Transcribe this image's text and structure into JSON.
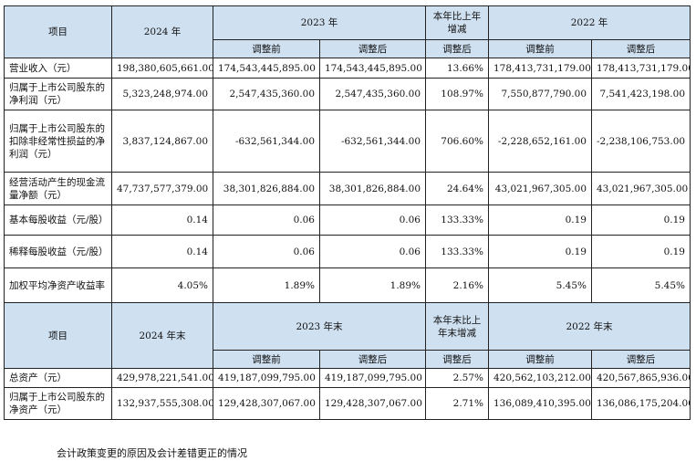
{
  "table1": {
    "header": {
      "item": "项目",
      "y2024": "2024 年",
      "y2023": "2023 年",
      "change": "本年比上年增减",
      "y2022": "2022 年",
      "before": "调整前",
      "after": "调整后",
      "change_after": "调整后"
    },
    "rows": [
      {
        "label": "营业收入（元）",
        "v2024": "198,380,605,661.00",
        "v2023_before": "174,543,445,895.00",
        "v2023_after": "174,543,445,895.00",
        "change": "13.66%",
        "v2022_before": "178,413,731,179.00",
        "v2022_after": "178,413,731,179.00"
      },
      {
        "label": "归属于上市公司股东的净利润（元）",
        "v2024": "5,323,248,974.00",
        "v2023_before": "2,547,435,360.00",
        "v2023_after": "2,547,435,360.00",
        "change": "108.97%",
        "v2022_before": "7,550,877,790.00",
        "v2022_after": "7,541,423,198.00"
      },
      {
        "label": "归属于上市公司股东的扣除非经常性损益的净利润（元）",
        "v2024": "3,837,124,867.00",
        "v2023_before": "-632,561,344.00",
        "v2023_after": "-632,561,344.00",
        "change": "706.60%",
        "v2022_before": "-2,228,652,161.00",
        "v2022_after": "-2,238,106,753.00"
      },
      {
        "label": "经营活动产生的现金流量净额（元）",
        "v2024": "47,737,577,379.00",
        "v2023_before": "38,301,826,884.00",
        "v2023_after": "38,301,826,884.00",
        "change": "24.64%",
        "v2022_before": "43,021,967,305.00",
        "v2022_after": "43,021,967,305.00"
      },
      {
        "label": "基本每股收益（元/股）",
        "v2024": "0.14",
        "v2023_before": "0.06",
        "v2023_after": "0.06",
        "change": "133.33%",
        "v2022_before": "0.19",
        "v2022_after": "0.19"
      },
      {
        "label": "稀释每股收益（元/股）",
        "v2024": "0.14",
        "v2023_before": "0.06",
        "v2023_after": "0.06",
        "change": "133.33%",
        "v2022_before": "0.19",
        "v2022_after": "0.19"
      },
      {
        "label": "加权平均净资产收益率",
        "v2024": "4.05%",
        "v2023_before": "1.89%",
        "v2023_after": "1.89%",
        "change": "2.16%",
        "v2022_before": "5.45%",
        "v2022_after": "5.45%"
      }
    ]
  },
  "table2": {
    "header": {
      "item": "项目",
      "y2024": "2024 年末",
      "y2023": "2023 年末",
      "change": "本年末比上年末增减",
      "y2022": "2022 年末",
      "before": "调整前",
      "after": "调整后",
      "change_after": "调整后"
    },
    "rows": [
      {
        "label": "总资产（元）",
        "v2024": "429,978,221,541.00",
        "v2023_before": "419,187,099,795.00",
        "v2023_after": "419,187,099,795.00",
        "change": "2.57%",
        "v2022_before": "420,562,103,212.00",
        "v2022_after": "420,567,865,936.00"
      },
      {
        "label": "归属于上市公司股东的净资产（元）",
        "v2024": "132,937,555,308.00",
        "v2023_before": "129,428,307,067.00",
        "v2023_after": "129,428,307,067.00",
        "change": "2.71%",
        "v2022_before": "136,089,410,395.00",
        "v2022_after": "136,086,175,204.00"
      }
    ]
  },
  "note": "会计政策变更的原因及会计差错更正的情况"
}
